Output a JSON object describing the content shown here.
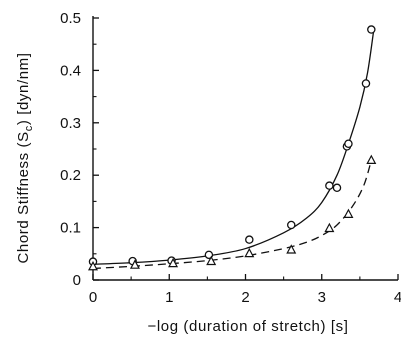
{
  "chart_data": {
    "type": "scatter",
    "title": "",
    "xlabel": "−log (duration of stretch)  [s]",
    "ylabel_main": "Chord Stiffness (S",
    "ylabel_sub": "c",
    "ylabel_tail": ")  [dyn/nm]",
    "xlim": [
      0,
      4
    ],
    "ylim": [
      0,
      0.5
    ],
    "x_ticks": [
      0,
      1,
      2,
      3,
      4
    ],
    "y_ticks": [
      0,
      0.1,
      0.2,
      0.3,
      0.4,
      0.5
    ],
    "x_tick_labels": [
      "0",
      "1",
      "2",
      "3",
      "4"
    ],
    "y_tick_labels": [
      "0",
      "0.1",
      "0.2",
      "0.3",
      "0.4",
      "0.5"
    ],
    "grid": false,
    "legend": "none",
    "series": [
      {
        "marker": "circle",
        "line": "solid",
        "points": [
          [
            0.0,
            0.035
          ],
          [
            0.52,
            0.036
          ],
          [
            1.03,
            0.037
          ],
          [
            1.52,
            0.048
          ],
          [
            2.05,
            0.077
          ],
          [
            2.6,
            0.105
          ],
          [
            3.1,
            0.18
          ],
          [
            3.2,
            0.176
          ],
          [
            3.33,
            0.255
          ],
          [
            3.35,
            0.26
          ],
          [
            3.58,
            0.375
          ],
          [
            3.65,
            0.478
          ]
        ],
        "fit": [
          [
            0.0,
            0.03
          ],
          [
            0.5,
            0.033
          ],
          [
            1.0,
            0.038
          ],
          [
            1.5,
            0.046
          ],
          [
            2.0,
            0.06
          ],
          [
            2.5,
            0.09
          ],
          [
            2.8,
            0.118
          ],
          [
            3.0,
            0.148
          ],
          [
            3.2,
            0.2
          ],
          [
            3.35,
            0.26
          ],
          [
            3.5,
            0.33
          ],
          [
            3.6,
            0.395
          ],
          [
            3.68,
            0.475
          ]
        ]
      },
      {
        "marker": "triangle",
        "line": "dashed",
        "points": [
          [
            0.0,
            0.025
          ],
          [
            0.55,
            0.028
          ],
          [
            1.05,
            0.031
          ],
          [
            1.55,
            0.035
          ],
          [
            2.05,
            0.05
          ],
          [
            2.6,
            0.057
          ],
          [
            3.1,
            0.098
          ],
          [
            3.35,
            0.125
          ],
          [
            3.65,
            0.228
          ]
        ],
        "fit": [
          [
            0.0,
            0.022
          ],
          [
            0.5,
            0.026
          ],
          [
            1.0,
            0.031
          ],
          [
            1.5,
            0.037
          ],
          [
            2.0,
            0.046
          ],
          [
            2.5,
            0.06
          ],
          [
            2.8,
            0.072
          ],
          [
            3.0,
            0.085
          ],
          [
            3.2,
            0.105
          ],
          [
            3.4,
            0.14
          ],
          [
            3.55,
            0.18
          ],
          [
            3.65,
            0.228
          ]
        ]
      }
    ]
  }
}
